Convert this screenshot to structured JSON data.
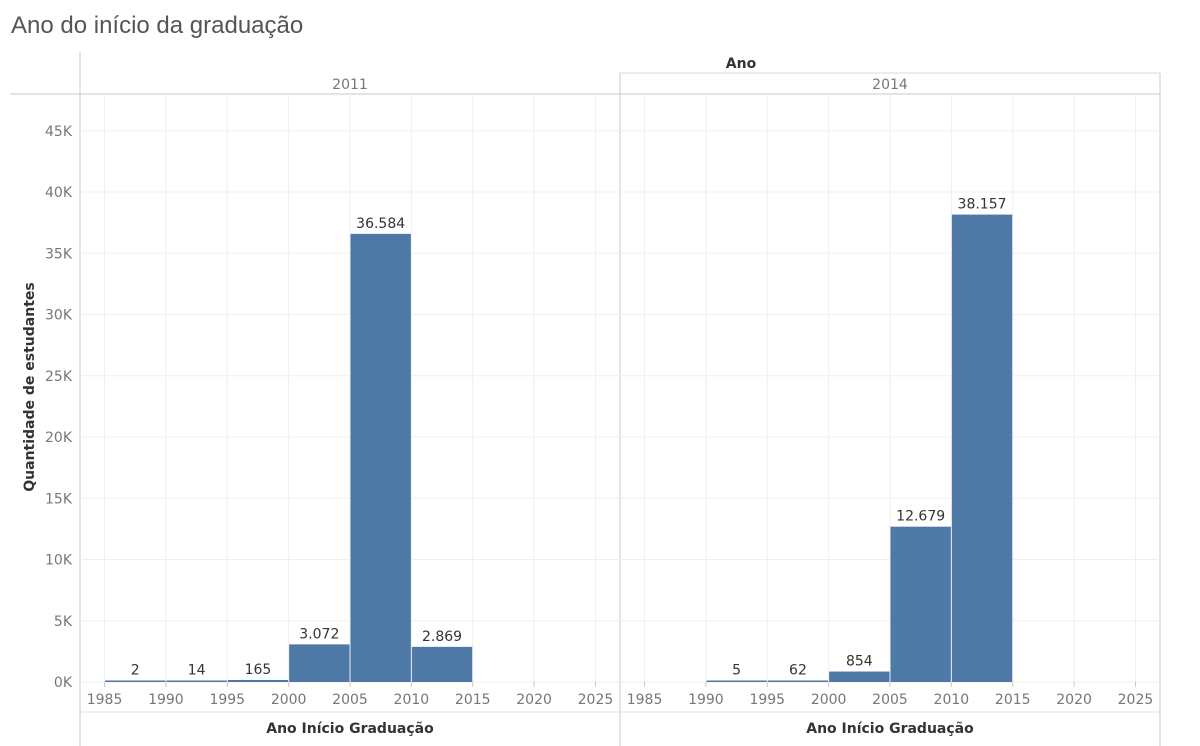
{
  "title": "Ano do início da graduação",
  "chart_data": {
    "type": "bar",
    "title": "Ano do início da graduação",
    "column_header": "Ano",
    "ylabel": "Quantidade de estudantes",
    "xlabel": "Ano Início Graduação",
    "ylim": [
      0,
      48000
    ],
    "yticks": [
      0,
      5000,
      10000,
      15000,
      20000,
      25000,
      30000,
      35000,
      40000,
      45000
    ],
    "ytick_labels": [
      "0K",
      "5K",
      "10K",
      "15K",
      "20K",
      "25K",
      "30K",
      "35K",
      "40K",
      "45K"
    ],
    "xlim": [
      1983,
      2027
    ],
    "xticks": [
      "1985",
      "1990",
      "1995",
      "2000",
      "2005",
      "2010",
      "2015",
      "2020",
      "2025"
    ],
    "bin_width": 5,
    "bar_color": "#4e79a7",
    "grid": true,
    "panels": [
      {
        "name": "2011",
        "bins": [
          {
            "start": 1985,
            "value": 2,
            "label": "2"
          },
          {
            "start": 1990,
            "value": 14,
            "label": "14"
          },
          {
            "start": 1995,
            "value": 165,
            "label": "165"
          },
          {
            "start": 2000,
            "value": 3072,
            "label": "3.072"
          },
          {
            "start": 2005,
            "value": 36584,
            "label": "36.584"
          },
          {
            "start": 2010,
            "value": 2869,
            "label": "2.869"
          }
        ]
      },
      {
        "name": "2014",
        "bins": [
          {
            "start": 1990,
            "value": 5,
            "label": "5"
          },
          {
            "start": 1995,
            "value": 62,
            "label": "62"
          },
          {
            "start": 2000,
            "value": 854,
            "label": "854"
          },
          {
            "start": 2005,
            "value": 12679,
            "label": "12.679"
          },
          {
            "start": 2010,
            "value": 38157,
            "label": "38.157"
          }
        ]
      }
    ]
  }
}
